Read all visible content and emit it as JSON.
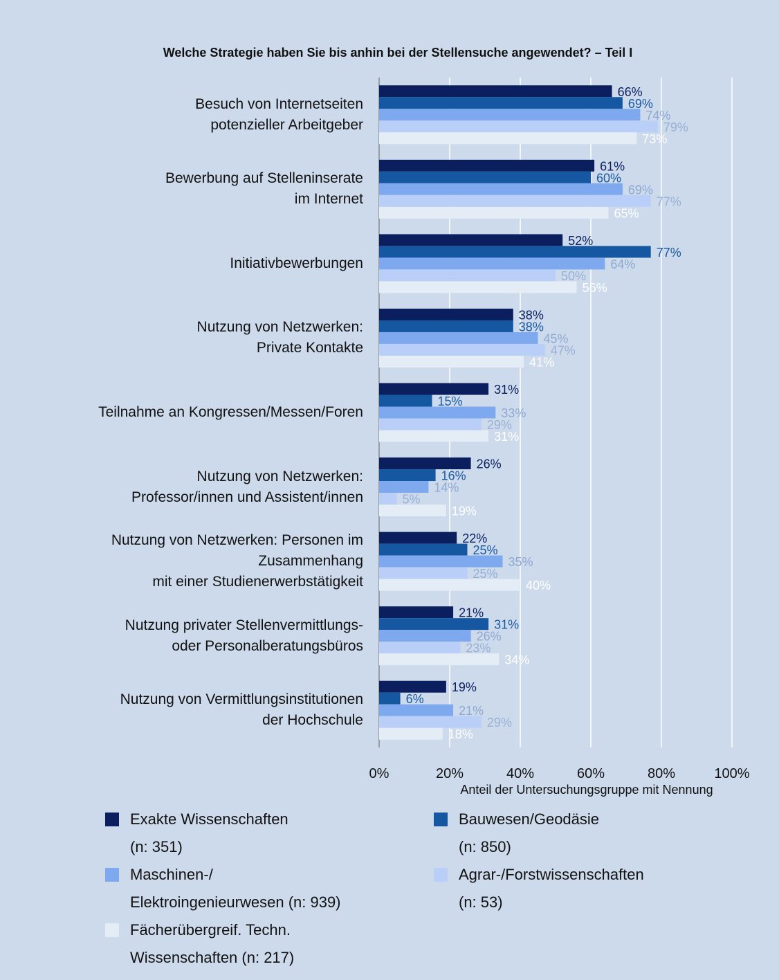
{
  "chart_data": {
    "type": "hbar",
    "title": "Welche Strategie haben Sie bis anhin bei der Stellensuche angewendet? – Teil I",
    "x_label": "Anteil der Untersuchungsgruppe  mit Nennung",
    "categories": [
      "Besuch von Internetseiten\npotenzieller Arbeitgeber",
      "Bewerbung auf Stelleninserate\nim Internet",
      "Initiativbewerbungen",
      "Nutzung von Netzwerken:\nPrivate Kontakte",
      "Teilnahme an Kongressen/Messen/Foren",
      "Nutzung von Netzwerken:\nProfessor/innen und Assistent/innen",
      "Nutzung von Netzwerken: Personen im\nZusammenhang\nmit einer Studienerwerbstätigkeit",
      "Nutzung privater Stellenvermittlungs-\noder Personalberatungsbüros",
      "Nutzung von Vermittlungsinstitutionen\nder Hochschule"
    ],
    "series": [
      {
        "name": "Exakte Wissenschaften\n(n: 351)",
        "color": "#0b1f5e",
        "label_color": "#0b1f5e",
        "values": [
          66,
          61,
          52,
          38,
          31,
          26,
          22,
          21,
          19
        ],
        "value_labels": [
          "66%",
          "61%",
          "52%",
          "38%",
          "31%",
          "26%",
          "22%",
          "21%",
          "19%"
        ]
      },
      {
        "name": "Bauwesen/Geodäsie\n(n: 850)",
        "color": "#1558a1",
        "label_color": "#1a5aa0",
        "values": [
          69,
          60,
          77,
          38,
          15,
          16,
          25,
          31,
          6
        ],
        "value_labels": [
          "69%",
          "60%",
          "77%",
          "38%",
          "15%",
          "16%",
          "25%",
          "31%",
          "6%"
        ]
      },
      {
        "name": "Maschinen-/\nElektroingenieurwesen (n: 939)",
        "color": "#7fa9ef",
        "label_color": "#8ea8d2",
        "values": [
          74,
          69,
          64,
          45,
          33,
          14,
          35,
          26,
          21
        ],
        "value_labels": [
          "74%",
          "69%",
          "64%",
          "45%",
          "33%",
          "14%",
          "35%",
          "26%",
          "21%"
        ]
      },
      {
        "name": "Agrar-/Forstwissenschaften\n(n: 53)",
        "color": "#b9cff7",
        "label_color": "#98b0d6",
        "values": [
          79,
          77,
          50,
          47,
          29,
          5,
          25,
          23,
          29
        ],
        "value_labels": [
          "79%",
          "77%",
          "50%",
          "47%",
          "29%",
          "5%",
          "25%",
          "23%",
          "29%"
        ]
      },
      {
        "name": "Fächerübergreif. Techn.\nWissenschaften (n: 217)",
        "color": "#e4ecf5",
        "label_color": "#ffffff",
        "values": [
          73,
          65,
          56,
          41,
          31,
          19,
          40,
          34,
          18
        ],
        "value_labels": [
          "73%",
          "65%",
          "56%",
          "41%",
          "31%",
          "19%",
          "40%",
          "34%",
          "18%"
        ]
      }
    ],
    "xlim": [
      0,
      100
    ],
    "xticks": [
      {
        "value": 0,
        "label": "0%"
      },
      {
        "value": 20,
        "label": "20%"
      },
      {
        "value": 40,
        "label": "40%"
      },
      {
        "value": 60,
        "label": "60%"
      },
      {
        "value": 80,
        "label": "80%"
      },
      {
        "value": 100,
        "label": "100%"
      }
    ],
    "grid": true
  }
}
